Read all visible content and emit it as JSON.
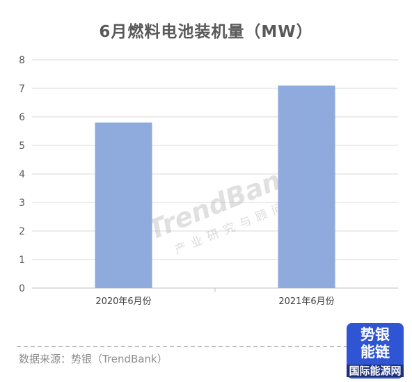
{
  "chart_data": {
    "type": "bar",
    "title": "6月燃料电池装机量（MW）",
    "categories": [
      "2020年6月份",
      "2021年6月份"
    ],
    "values": [
      5.8,
      7.1
    ],
    "ylim": [
      0,
      8
    ],
    "yticks": [
      0,
      1,
      2,
      3,
      4,
      5,
      6,
      7,
      8
    ],
    "bar_color": "#8faadc",
    "grid": true
  },
  "watermark": {
    "brand": "TrendBank",
    "tagline": "产业研究与顾问公司"
  },
  "footer": {
    "source": "数据来源：势银（TrendBank）"
  },
  "logo": {
    "line1": "势银",
    "line2": "能链",
    "line3": "国际能源网"
  }
}
